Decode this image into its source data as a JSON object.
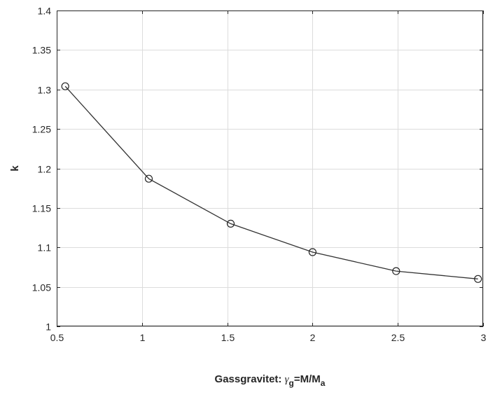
{
  "chart_data": {
    "type": "line",
    "title": "",
    "xlabel": "Gassgravitet: γg=M/Ma",
    "xlabel_parts": {
      "prefix": "Gassgravitet: ",
      "gamma": "γ",
      "gamma_sub": "g",
      "mid": "=M/M",
      "m_sub": "a"
    },
    "ylabel": "k",
    "xlim": [
      0.5,
      3
    ],
    "ylim": [
      1,
      1.4
    ],
    "xticks": [
      "0.5",
      "1",
      "1.5",
      "2",
      "2.5",
      "3"
    ],
    "yticks": [
      "1",
      "1.05",
      "1.1",
      "1.15",
      "1.2",
      "1.25",
      "1.3",
      "1.35",
      "1.4"
    ],
    "grid": true,
    "series": [
      {
        "x": [
          0.55,
          1.04,
          1.52,
          2.0,
          2.49,
          2.97
        ],
        "y": [
          1.304,
          1.187,
          1.13,
          1.094,
          1.07,
          1.06
        ],
        "color": "#333333",
        "marker": "circle"
      }
    ]
  }
}
